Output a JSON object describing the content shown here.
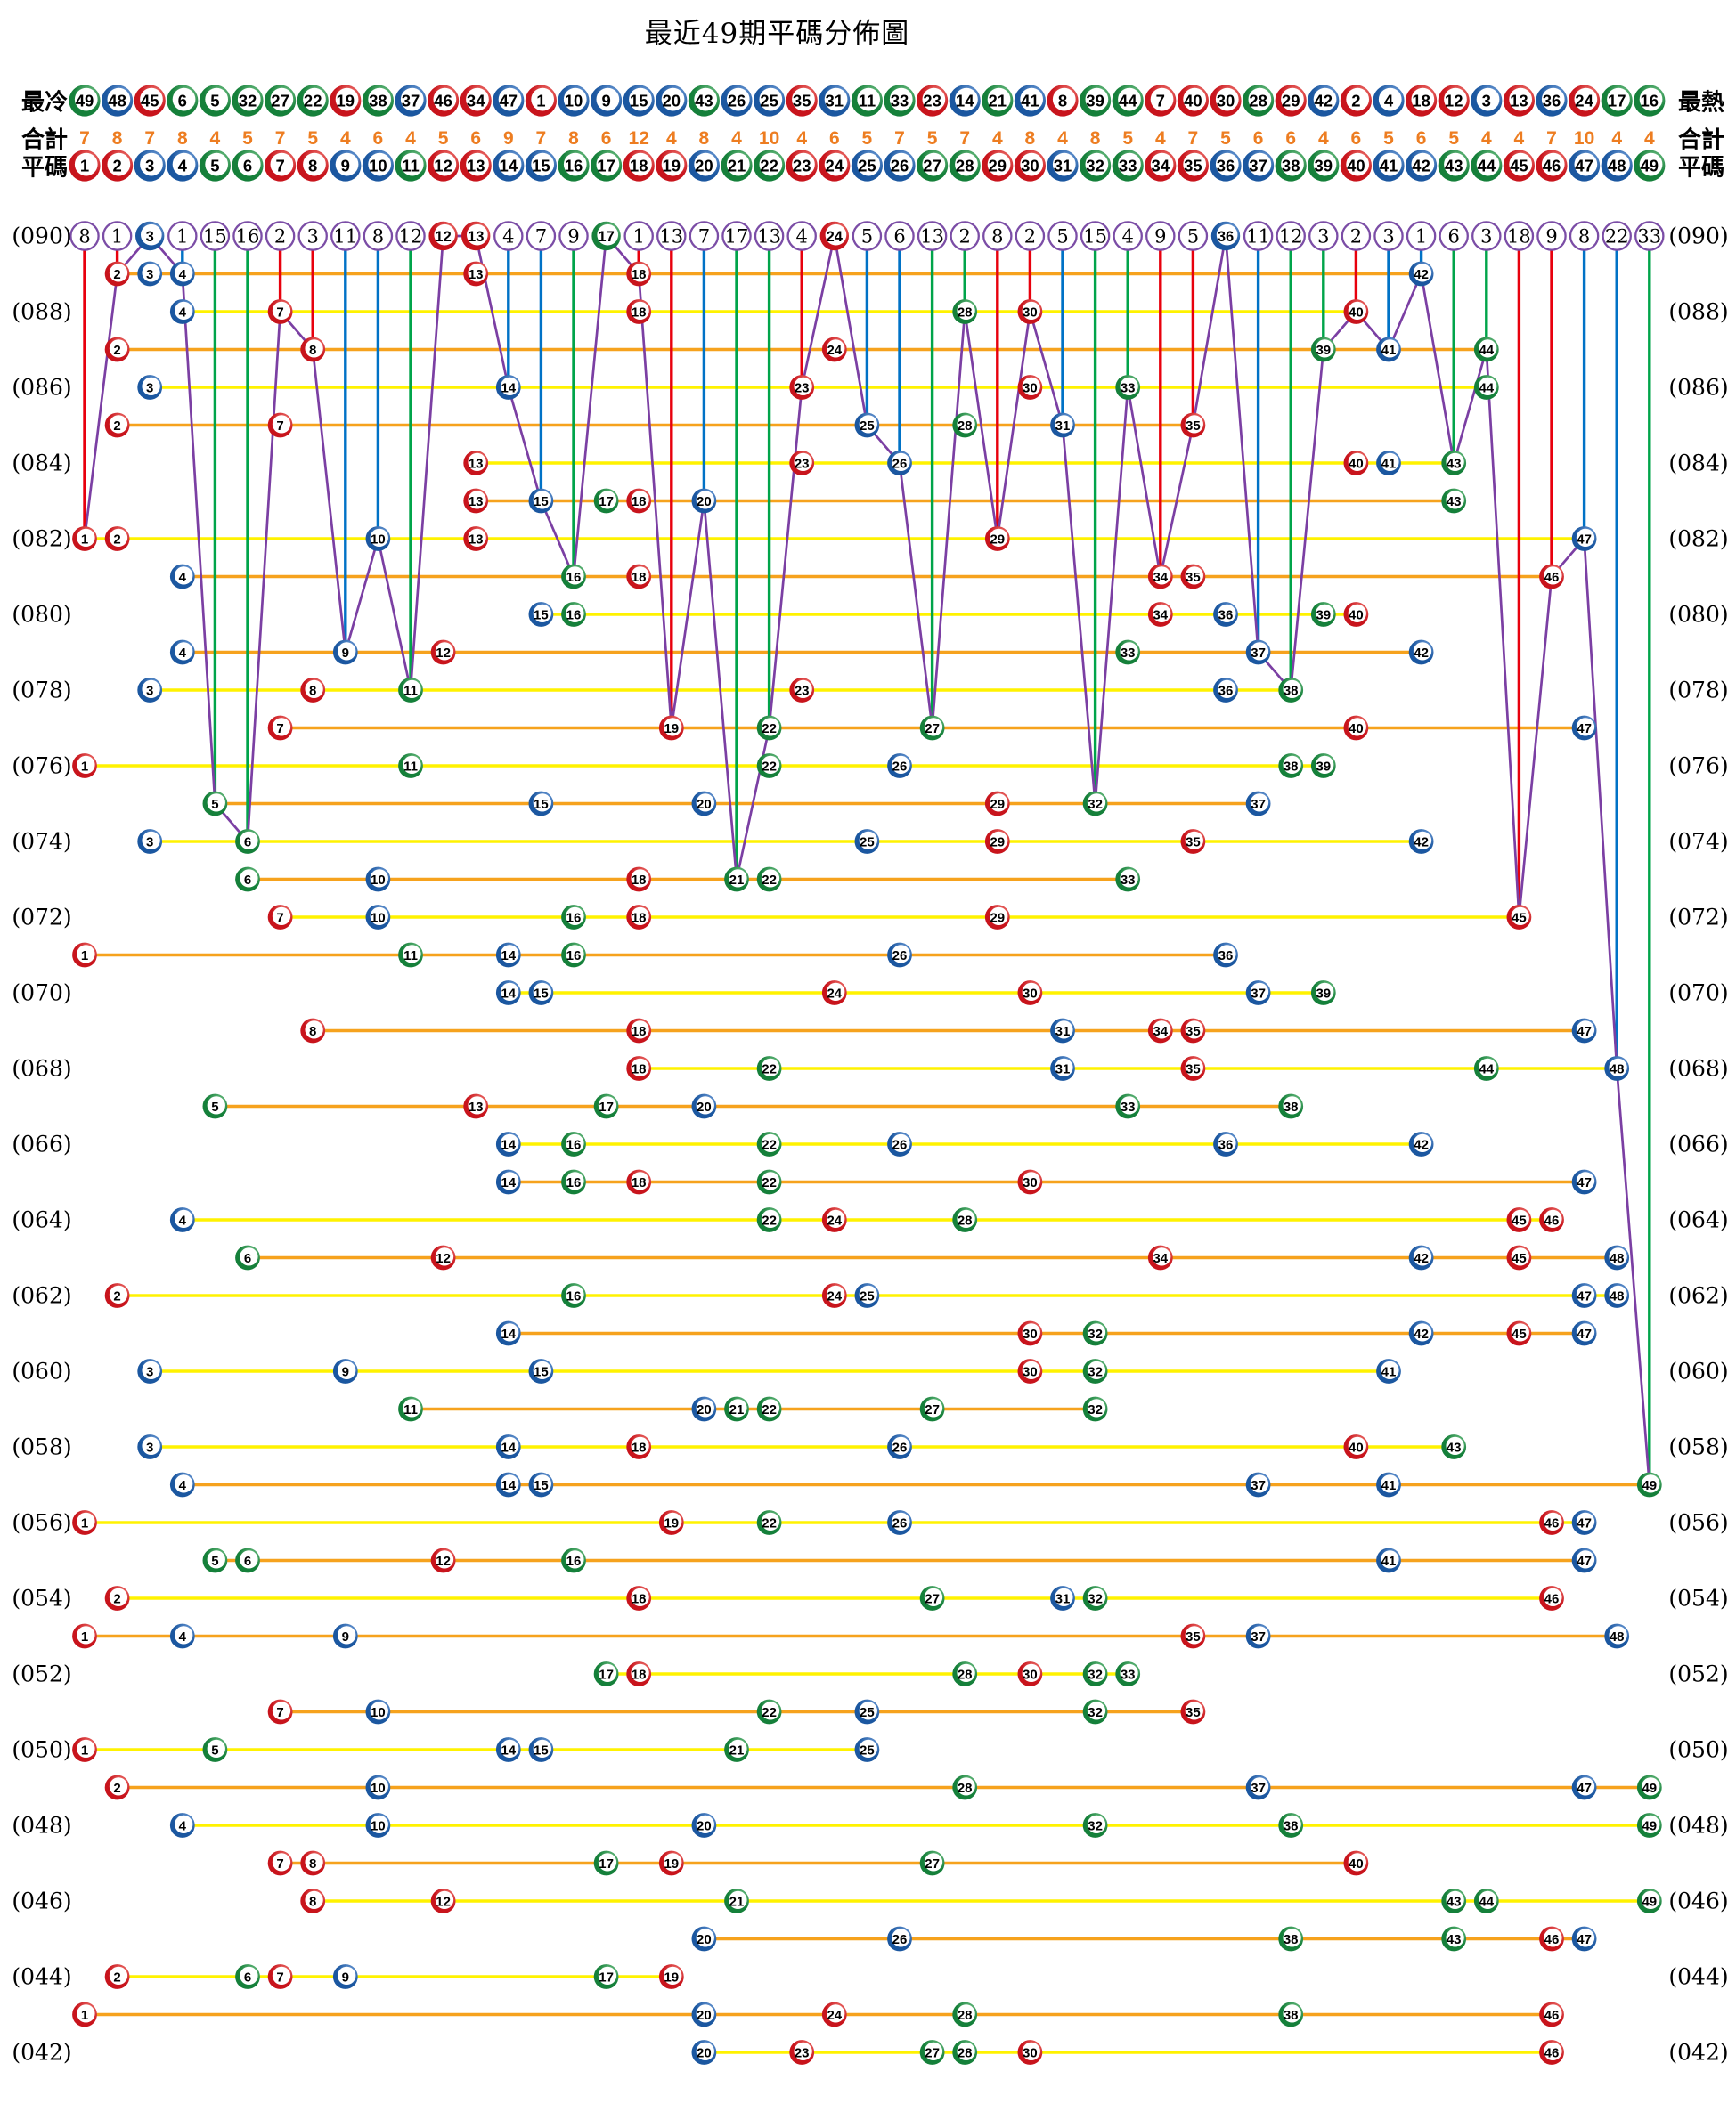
{
  "title": "最近49期平碼分佈圖",
  "labels": {
    "coldest": "最冷",
    "hottest": "最熱",
    "total": "合計",
    "ping": "平碼"
  },
  "colors": {
    "red_ball": "#C8141C",
    "red_ball_light": "#F5837B",
    "blue_ball": "#1B57A0",
    "blue_ball_light": "#7BA7E0",
    "green_ball": "#15803A",
    "green_ball_light": "#7CC98F",
    "purple_line": "#7B3FA3",
    "purple_circle_stroke": "#7B4DA6",
    "vline_red": "#E8000D",
    "vline_blue": "#0072C6",
    "vline_green": "#00A44A",
    "row_line_even": "#FFF200",
    "row_line_odd": "#F6A21D",
    "totals_text": "#ED7D21",
    "number_text": "#000000"
  },
  "chart_data": {
    "type": "scatter",
    "title": "最近49期平碼分佈圖",
    "x_axis": "ball numbers 1-49 (平碼)",
    "y_axis": "draw periods 090 (top, newest) to 042 (bottom, oldest)",
    "ball_numbers": [
      1,
      2,
      3,
      4,
      5,
      6,
      7,
      8,
      9,
      10,
      11,
      12,
      13,
      14,
      15,
      16,
      17,
      18,
      19,
      20,
      21,
      22,
      23,
      24,
      25,
      26,
      27,
      28,
      29,
      30,
      31,
      32,
      33,
      34,
      35,
      36,
      37,
      38,
      39,
      40,
      41,
      42,
      43,
      44,
      45,
      46,
      47,
      48,
      49
    ],
    "ball_colors": {
      "red": [
        1,
        2,
        7,
        8,
        12,
        13,
        18,
        19,
        23,
        24,
        29,
        30,
        34,
        35,
        40,
        45,
        46
      ],
      "blue": [
        3,
        4,
        9,
        10,
        14,
        15,
        20,
        25,
        26,
        31,
        36,
        37,
        41,
        42,
        47,
        48
      ],
      "green": [
        5,
        6,
        11,
        16,
        17,
        21,
        22,
        27,
        28,
        32,
        33,
        38,
        39,
        43,
        44,
        49
      ]
    },
    "coldest_to_hottest": [
      49,
      48,
      45,
      6,
      5,
      32,
      27,
      22,
      19,
      38,
      37,
      46,
      34,
      47,
      1,
      10,
      9,
      15,
      20,
      43,
      26,
      25,
      35,
      31,
      11,
      33,
      23,
      14,
      21,
      41,
      8,
      39,
      44,
      7,
      40,
      30,
      28,
      29,
      42,
      2,
      4,
      18,
      12,
      3,
      13,
      36,
      24,
      17,
      16
    ],
    "totals_per_ball": [
      7,
      8,
      7,
      8,
      4,
      5,
      7,
      5,
      4,
      6,
      4,
      5,
      6,
      9,
      7,
      8,
      6,
      12,
      4,
      8,
      4,
      10,
      4,
      6,
      5,
      7,
      5,
      7,
      4,
      8,
      4,
      8,
      5,
      4,
      7,
      5,
      6,
      6,
      4,
      6,
      5,
      6,
      5,
      4,
      4,
      7,
      10,
      4,
      4
    ],
    "top_row_period": "090",
    "top_row_display": [
      8,
      1,
      3,
      1,
      15,
      16,
      2,
      3,
      11,
      8,
      12,
      12,
      13,
      4,
      7,
      9,
      17,
      1,
      13,
      7,
      17,
      13,
      4,
      24,
      5,
      6,
      13,
      2,
      8,
      2,
      5,
      15,
      4,
      9,
      5,
      36,
      11,
      12,
      3,
      2,
      3,
      1,
      6,
      3,
      18,
      9,
      8,
      22,
      33
    ],
    "draws": [
      {
        "period": "090",
        "balls": [
          3,
          12,
          13,
          17,
          24,
          36
        ]
      },
      {
        "period": "089",
        "balls": [
          2,
          3,
          4,
          13,
          18,
          42
        ]
      },
      {
        "period": "088",
        "balls": [
          4,
          7,
          18,
          28,
          30,
          40
        ]
      },
      {
        "period": "087",
        "balls": [
          2,
          8,
          24,
          39,
          41,
          44
        ]
      },
      {
        "period": "086",
        "balls": [
          3,
          14,
          23,
          30,
          33,
          44
        ]
      },
      {
        "period": "085",
        "balls": [
          2,
          7,
          25,
          28,
          31,
          35
        ]
      },
      {
        "period": "084",
        "balls": [
          13,
          23,
          26,
          40,
          41,
          43
        ]
      },
      {
        "period": "083",
        "balls": [
          13,
          15,
          17,
          18,
          20,
          43
        ]
      },
      {
        "period": "082",
        "balls": [
          1,
          2,
          10,
          13,
          29,
          47
        ]
      },
      {
        "period": "081",
        "balls": [
          4,
          16,
          18,
          34,
          35,
          46
        ]
      },
      {
        "period": "080",
        "balls": [
          15,
          16,
          34,
          36,
          39,
          40
        ]
      },
      {
        "period": "079",
        "balls": [
          4,
          9,
          12,
          33,
          37,
          42
        ]
      },
      {
        "period": "078",
        "balls": [
          3,
          8,
          11,
          23,
          36,
          38
        ]
      },
      {
        "period": "077",
        "balls": [
          7,
          19,
          22,
          27,
          40,
          47
        ]
      },
      {
        "period": "076",
        "balls": [
          1,
          11,
          22,
          26,
          38,
          39
        ]
      },
      {
        "period": "075",
        "balls": [
          5,
          15,
          20,
          29,
          32,
          37
        ]
      },
      {
        "period": "074",
        "balls": [
          3,
          6,
          25,
          29,
          35,
          42
        ]
      },
      {
        "period": "073",
        "balls": [
          6,
          10,
          18,
          21,
          22,
          33
        ]
      },
      {
        "period": "072",
        "balls": [
          7,
          10,
          16,
          18,
          29,
          45
        ]
      },
      {
        "period": "071",
        "balls": [
          1,
          11,
          14,
          16,
          26,
          36
        ]
      },
      {
        "period": "070",
        "balls": [
          14,
          15,
          24,
          30,
          37,
          39
        ]
      },
      {
        "period": "069",
        "balls": [
          8,
          18,
          31,
          34,
          35,
          47
        ]
      },
      {
        "period": "068",
        "balls": [
          18,
          22,
          31,
          35,
          44,
          48
        ]
      },
      {
        "period": "067",
        "balls": [
          5,
          13,
          17,
          20,
          33,
          38
        ]
      },
      {
        "period": "066",
        "balls": [
          14,
          16,
          22,
          26,
          36,
          42
        ]
      },
      {
        "period": "065",
        "balls": [
          14,
          16,
          18,
          22,
          30,
          47
        ]
      },
      {
        "period": "064",
        "balls": [
          4,
          22,
          24,
          28,
          45,
          46
        ]
      },
      {
        "period": "063",
        "balls": [
          6,
          12,
          34,
          42,
          45,
          48
        ]
      },
      {
        "period": "062",
        "balls": [
          2,
          16,
          24,
          25,
          47,
          48
        ]
      },
      {
        "period": "061",
        "balls": [
          14,
          30,
          32,
          42,
          45,
          47
        ]
      },
      {
        "period": "060",
        "balls": [
          3,
          9,
          15,
          30,
          32,
          41
        ]
      },
      {
        "period": "059",
        "balls": [
          11,
          20,
          21,
          22,
          27,
          32
        ]
      },
      {
        "period": "058",
        "balls": [
          3,
          14,
          18,
          26,
          40,
          43
        ]
      },
      {
        "period": "057",
        "balls": [
          4,
          14,
          15,
          37,
          41,
          49
        ]
      },
      {
        "period": "056",
        "balls": [
          1,
          19,
          22,
          26,
          46,
          47
        ]
      },
      {
        "period": "055",
        "balls": [
          5,
          6,
          12,
          16,
          41,
          47
        ]
      },
      {
        "period": "054",
        "balls": [
          2,
          18,
          27,
          31,
          32,
          46
        ]
      },
      {
        "period": "053",
        "balls": [
          1,
          4,
          9,
          35,
          37,
          48
        ]
      },
      {
        "period": "052",
        "balls": [
          17,
          18,
          28,
          30,
          32,
          33
        ]
      },
      {
        "period": "051",
        "balls": [
          7,
          10,
          22,
          25,
          32,
          35
        ]
      },
      {
        "period": "050",
        "balls": [
          1,
          5,
          14,
          15,
          21,
          25
        ]
      },
      {
        "period": "049",
        "balls": [
          2,
          10,
          28,
          37,
          47,
          49
        ]
      },
      {
        "period": "048",
        "balls": [
          4,
          10,
          20,
          32,
          38,
          49
        ]
      },
      {
        "period": "047",
        "balls": [
          7,
          8,
          17,
          19,
          27,
          40
        ]
      },
      {
        "period": "046",
        "balls": [
          8,
          12,
          21,
          43,
          44,
          49
        ]
      },
      {
        "period": "045",
        "balls": [
          20,
          26,
          38,
          43,
          46,
          47
        ]
      },
      {
        "period": "044",
        "balls": [
          2,
          6,
          7,
          9,
          17,
          19
        ]
      },
      {
        "period": "043",
        "balls": [
          1,
          20,
          24,
          28,
          38,
          46
        ]
      },
      {
        "period": "042",
        "balls": [
          20,
          23,
          27,
          28,
          30,
          46
        ]
      }
    ]
  }
}
